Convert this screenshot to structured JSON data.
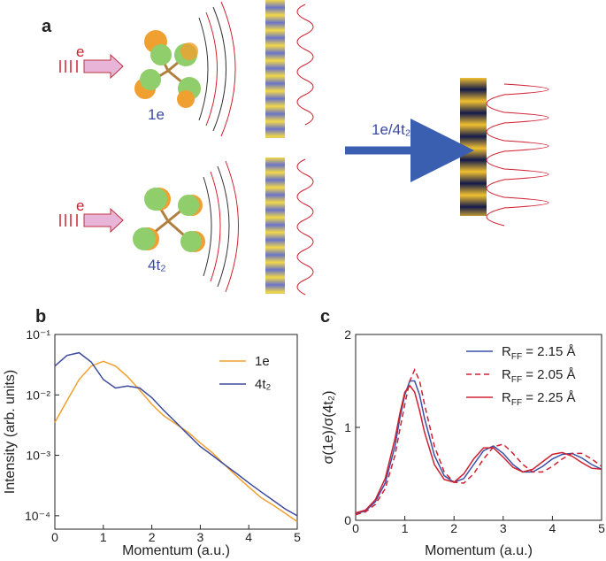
{
  "panels": [
    "a",
    "b",
    "c"
  ],
  "diagram": {
    "electron_labels": [
      "e",
      "e"
    ],
    "orbital_labels": [
      "1e",
      "4t₂"
    ],
    "arrow_label": "1e/4t₂"
  },
  "chart_data": [
    {
      "type": "line",
      "xlabel": "Momentum (a.u.)",
      "ylabel": "Intensity (arb. units)",
      "x": [
        0,
        0.25,
        0.5,
        0.75,
        1.0,
        1.25,
        1.5,
        1.75,
        2.0,
        2.25,
        2.5,
        2.75,
        3.0,
        3.25,
        3.5,
        3.75,
        4.0,
        4.25,
        4.5,
        4.75,
        5.0
      ],
      "series": [
        {
          "name": "1e",
          "color": "#f0a030",
          "values": [
            0.0035,
            0.008,
            0.018,
            0.03,
            0.036,
            0.03,
            0.02,
            0.012,
            0.007,
            0.0045,
            0.0033,
            0.0024,
            0.0016,
            0.0011,
            0.0007,
            0.00045,
            0.0003,
            0.0002,
            0.00015,
            0.00011,
            8e-05
          ]
        },
        {
          "name": "4t₂",
          "color": "#3c4b9c",
          "values": [
            0.03,
            0.045,
            0.05,
            0.035,
            0.018,
            0.013,
            0.014,
            0.013,
            0.009,
            0.0055,
            0.0035,
            0.0022,
            0.0014,
            0.001,
            0.0007,
            0.0005,
            0.00035,
            0.00025,
            0.00018,
            0.00013,
            0.0001
          ]
        }
      ],
      "xlim": [
        0,
        5
      ],
      "ylim": [
        6e-05,
        0.1
      ],
      "log_y": true,
      "xticks": [
        0,
        1,
        2,
        3,
        4,
        5
      ],
      "yticks": [
        {
          "value": 0.0001,
          "label": "10⁻⁴"
        },
        {
          "value": 0.001,
          "label": "10⁻³"
        },
        {
          "value": 0.01,
          "label": "10⁻²"
        },
        {
          "value": 0.1,
          "label": "10⁻¹"
        }
      ],
      "legend": "upper right"
    },
    {
      "type": "line",
      "xlabel": "Momentum (a.u.)",
      "ylabel": "σ(1e)/σ(4t₂)",
      "x": [
        0,
        0.2,
        0.4,
        0.6,
        0.8,
        0.9,
        1.0,
        1.1,
        1.2,
        1.3,
        1.4,
        1.6,
        1.8,
        2.0,
        2.2,
        2.4,
        2.6,
        2.8,
        3.0,
        3.2,
        3.4,
        3.6,
        3.8,
        4.0,
        4.2,
        4.4,
        4.6,
        4.8,
        5.0
      ],
      "series": [
        {
          "name": "RFF = 2.15 Å",
          "color": "#3a50a8",
          "dashed": false,
          "values": [
            0.07,
            0.1,
            0.2,
            0.4,
            0.8,
            1.1,
            1.35,
            1.5,
            1.5,
            1.35,
            1.1,
            0.7,
            0.48,
            0.41,
            0.45,
            0.6,
            0.75,
            0.8,
            0.72,
            0.6,
            0.52,
            0.52,
            0.58,
            0.66,
            0.71,
            0.72,
            0.67,
            0.6,
            0.55
          ]
        },
        {
          "name": "RFF = 2.05 Å",
          "color": "#d02030",
          "dashed": true,
          "values": [
            0.06,
            0.09,
            0.17,
            0.34,
            0.7,
            0.98,
            1.25,
            1.5,
            1.62,
            1.5,
            1.25,
            0.8,
            0.52,
            0.41,
            0.4,
            0.5,
            0.66,
            0.79,
            0.82,
            0.72,
            0.6,
            0.52,
            0.52,
            0.58,
            0.66,
            0.72,
            0.72,
            0.66,
            0.58
          ]
        },
        {
          "name": "RFF = 2.25 Å",
          "color": "#d02030",
          "dashed": false,
          "values": [
            0.08,
            0.11,
            0.22,
            0.45,
            0.88,
            1.15,
            1.38,
            1.45,
            1.38,
            1.18,
            0.95,
            0.6,
            0.44,
            0.41,
            0.5,
            0.66,
            0.78,
            0.78,
            0.68,
            0.57,
            0.52,
            0.55,
            0.63,
            0.71,
            0.73,
            0.69,
            0.62,
            0.56,
            0.55
          ]
        }
      ],
      "xlim": [
        0,
        5
      ],
      "ylim": [
        0,
        2
      ],
      "log_y": false,
      "xticks": [
        0,
        1,
        2,
        3,
        4,
        5
      ],
      "yticks": [
        0,
        1,
        2
      ],
      "legend": "upper right"
    }
  ]
}
